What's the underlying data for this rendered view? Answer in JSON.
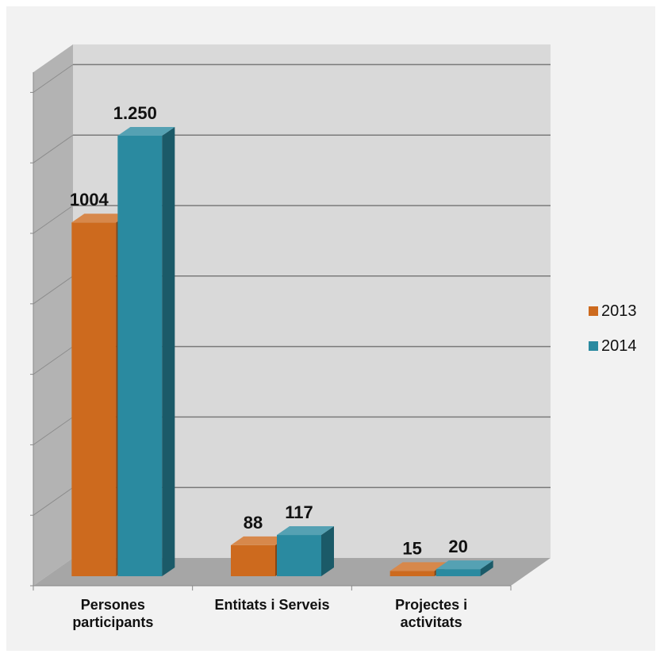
{
  "chart_data": {
    "type": "bar",
    "categories": [
      [
        "Persones",
        "participants"
      ],
      [
        "Entitats i Serveis"
      ],
      [
        "Projectes i",
        "activitats"
      ]
    ],
    "series": [
      {
        "name": "2013",
        "values": [
          1004,
          88,
          15
        ],
        "labels": [
          "1004",
          "88",
          "15"
        ],
        "color": "#cd6a1e"
      },
      {
        "name": "2014",
        "values": [
          1250,
          117,
          20
        ],
        "labels": [
          "1.250",
          "117",
          "20"
        ],
        "color": "#2a8aa0"
      }
    ],
    "ylim": [
      0,
      1400
    ],
    "grid": true,
    "legend_position": "right",
    "three_d": true
  }
}
